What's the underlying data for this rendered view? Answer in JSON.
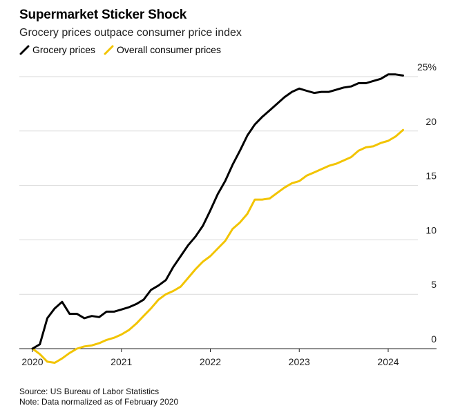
{
  "header": {
    "title": "Supermarket Sticker Shock",
    "subtitle": "Grocery prices outpace consumer price index"
  },
  "legend": [
    {
      "label": "Grocery prices",
      "color": "#000000"
    },
    {
      "label": "Overall consumer prices",
      "color": "#F2C400"
    }
  ],
  "footer": {
    "source": "Source: US Bureau of Labor Statistics",
    "note": "Note: Data normalized as of February 2020"
  },
  "chart_data": {
    "type": "line",
    "title": "Supermarket Sticker Shock",
    "subtitle": "Grocery prices outpace consumer price index",
    "xlabel": "",
    "ylabel": "",
    "x_domain": [
      2020.0,
      2024.3
    ],
    "ylim": [
      0,
      25
    ],
    "x_ticks": [
      {
        "value": 2020,
        "label": "2020"
      },
      {
        "value": 2021,
        "label": "2021"
      },
      {
        "value": 2022,
        "label": "2022"
      },
      {
        "value": 2023,
        "label": "2023"
      },
      {
        "value": 2024,
        "label": "2024"
      }
    ],
    "y_ticks": [
      {
        "value": 0,
        "label": "0"
      },
      {
        "value": 5,
        "label": "5"
      },
      {
        "value": 10,
        "label": "10"
      },
      {
        "value": 15,
        "label": "15"
      },
      {
        "value": 20,
        "label": "20"
      },
      {
        "value": 25,
        "label": "25%"
      }
    ],
    "grid": true,
    "legend_position": "top-left",
    "series": [
      {
        "name": "Grocery prices",
        "color": "#000000",
        "x": [
          2020.0,
          2020.083,
          2020.167,
          2020.25,
          2020.333,
          2020.417,
          2020.5,
          2020.583,
          2020.667,
          2020.75,
          2020.833,
          2020.917,
          2021.0,
          2021.083,
          2021.167,
          2021.25,
          2021.333,
          2021.417,
          2021.5,
          2021.583,
          2021.667,
          2021.75,
          2021.833,
          2021.917,
          2022.0,
          2022.083,
          2022.167,
          2022.25,
          2022.333,
          2022.417,
          2022.5,
          2022.583,
          2022.667,
          2022.75,
          2022.833,
          2022.917,
          2023.0,
          2023.083,
          2023.167,
          2023.25,
          2023.333,
          2023.417,
          2023.5,
          2023.583,
          2023.667,
          2023.75,
          2023.833,
          2023.917,
          2024.0,
          2024.083,
          2024.167
        ],
        "values": [
          0.0,
          0.4,
          2.8,
          3.7,
          4.3,
          3.2,
          3.2,
          2.8,
          3.0,
          2.9,
          3.4,
          3.4,
          3.6,
          3.8,
          4.1,
          4.5,
          5.4,
          5.8,
          6.3,
          7.5,
          8.5,
          9.5,
          10.3,
          11.3,
          12.7,
          14.2,
          15.4,
          16.9,
          18.2,
          19.6,
          20.6,
          21.3,
          21.9,
          22.5,
          23.1,
          23.6,
          23.9,
          23.7,
          23.5,
          23.6,
          23.6,
          23.8,
          24.0,
          24.1,
          24.4,
          24.4,
          24.6,
          24.8,
          25.2,
          25.2,
          25.1
        ]
      },
      {
        "name": "Overall consumer prices",
        "color": "#F2C400",
        "x": [
          2020.0,
          2020.083,
          2020.167,
          2020.25,
          2020.333,
          2020.417,
          2020.5,
          2020.583,
          2020.667,
          2020.75,
          2020.833,
          2020.917,
          2021.0,
          2021.083,
          2021.167,
          2021.25,
          2021.333,
          2021.417,
          2021.5,
          2021.583,
          2021.667,
          2021.75,
          2021.833,
          2021.917,
          2022.0,
          2022.083,
          2022.167,
          2022.25,
          2022.333,
          2022.417,
          2022.5,
          2022.583,
          2022.667,
          2022.75,
          2022.833,
          2022.917,
          2023.0,
          2023.083,
          2023.167,
          2023.25,
          2023.333,
          2023.417,
          2023.5,
          2023.583,
          2023.667,
          2023.75,
          2023.833,
          2023.917,
          2024.0,
          2024.083,
          2024.167
        ],
        "values": [
          0.0,
          -0.5,
          -1.2,
          -1.3,
          -0.9,
          -0.4,
          0.0,
          0.2,
          0.3,
          0.5,
          0.8,
          1.0,
          1.3,
          1.7,
          2.3,
          3.0,
          3.7,
          4.5,
          5.0,
          5.3,
          5.7,
          6.5,
          7.3,
          8.0,
          8.5,
          9.2,
          9.9,
          11.0,
          11.6,
          12.4,
          13.7,
          13.7,
          13.8,
          14.3,
          14.8,
          15.2,
          15.4,
          15.9,
          16.2,
          16.5,
          16.8,
          17.0,
          17.3,
          17.6,
          18.2,
          18.5,
          18.6,
          18.9,
          19.1,
          19.5,
          20.1
        ]
      }
    ]
  }
}
